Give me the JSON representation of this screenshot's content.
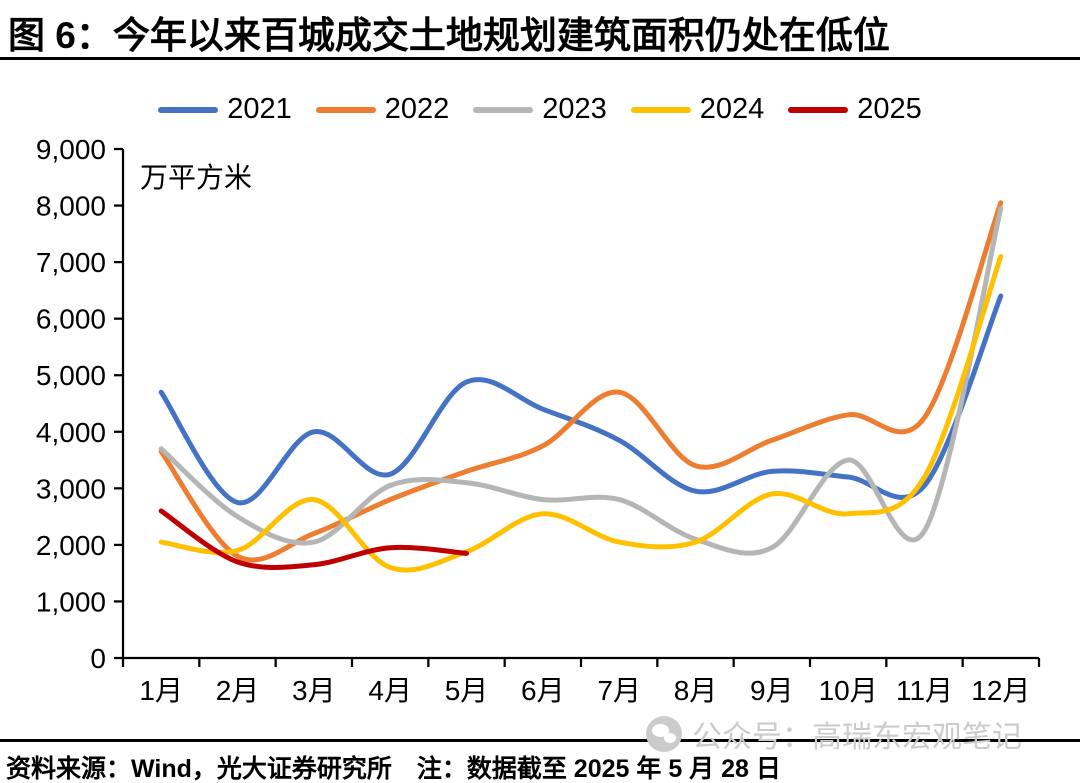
{
  "figure": {
    "title": "图 6：今年以来百城成交土地规划建筑面积仍处在低位",
    "unit_label": "万平方米",
    "source_note": "资料来源：Wind，光大证券研究所　注：数据截至 2025 年 5 月 28 日",
    "watermark": "公众号：高瑞东宏观笔记"
  },
  "colors": {
    "axis": "#000000",
    "text": "#000000",
    "watermark": "#cbcbcb",
    "series_2021": "#4472C4",
    "series_2022": "#ED7D31",
    "series_2023": "#B5B5B5",
    "series_2024": "#FFC000",
    "series_2025": "#C00000"
  },
  "chart_data": {
    "type": "line",
    "title": "图 6：今年以来百城成交土地规划建筑面积仍处在低位",
    "xlabel": "",
    "ylabel": "万平方米",
    "x": [
      "1月",
      "2月",
      "3月",
      "4月",
      "5月",
      "6月",
      "7月",
      "8月",
      "9月",
      "10月",
      "11月",
      "12月"
    ],
    "ylim": [
      0,
      9000
    ],
    "ytick_interval": 1000,
    "ytick_labels": [
      "0",
      "1,000",
      "2,000",
      "3,000",
      "4,000",
      "5,000",
      "6,000",
      "7,000",
      "8,000",
      "9,000"
    ],
    "grid": false,
    "legend_position": "top",
    "line_style": "smooth",
    "series": [
      {
        "name": "2021",
        "color": "#4472C4",
        "values": [
          4700,
          2750,
          4000,
          3250,
          4880,
          4400,
          3850,
          2950,
          3300,
          3200,
          3050,
          6400
        ]
      },
      {
        "name": "2022",
        "color": "#ED7D31",
        "values": [
          3650,
          1800,
          2200,
          2800,
          3300,
          3750,
          4700,
          3400,
          3850,
          4300,
          4250,
          8050
        ]
      },
      {
        "name": "2023",
        "color": "#B5B5B5",
        "values": [
          3700,
          2500,
          2050,
          3050,
          3100,
          2800,
          2800,
          2100,
          1950,
          3500,
          2250,
          7950
        ]
      },
      {
        "name": "2024",
        "color": "#FFC000",
        "values": [
          2050,
          1900,
          2800,
          1600,
          1880,
          2550,
          2050,
          2050,
          2900,
          2550,
          3200,
          7100
        ]
      },
      {
        "name": "2025",
        "color": "#C00000",
        "values": [
          2600,
          1700,
          1650,
          1950,
          1850
        ]
      }
    ]
  }
}
